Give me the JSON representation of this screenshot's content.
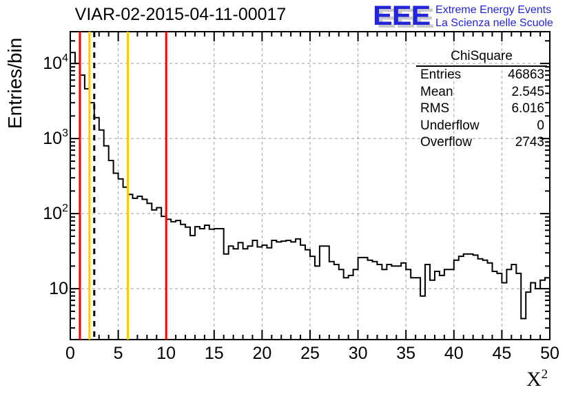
{
  "title": "VIAR-02-2015-04-11-00017",
  "y_axis_label": "Entries/bin",
  "x_axis_label": {
    "base": "X",
    "exp": "2"
  },
  "logo": {
    "eee": "EEE",
    "line1": "Extreme Energy Events",
    "line2": "La Scienza nelle Scuole",
    "color": "#2424d8"
  },
  "stats": {
    "header": "ChiSquare",
    "rows": [
      {
        "label": "Entries",
        "value": "46863"
      },
      {
        "label": "Mean",
        "value": "2.545"
      },
      {
        "label": "RMS",
        "value": "6.016"
      },
      {
        "label": "Underflow",
        "value": "0"
      },
      {
        "label": "Overflow",
        "value": "2743"
      }
    ]
  },
  "chart_data": {
    "type": "bar",
    "subtype": "step-histogram-logy",
    "title": "VIAR-02-2015-04-11-00017",
    "xlabel": "X^2",
    "ylabel": "Entries/bin",
    "grid": true,
    "x_axis": {
      "min": 0,
      "max": 50,
      "major_step": 5,
      "minor_step": 1,
      "tick_labels": [
        "0",
        "5",
        "10",
        "15",
        "20",
        "25",
        "30",
        "35",
        "40",
        "45",
        "50"
      ]
    },
    "y_axis": {
      "scale": "log",
      "min": 2.1,
      "max": 26500,
      "decades": [
        10,
        100,
        1000,
        10000
      ],
      "tick_labels": [
        {
          "value": 10,
          "base": "10",
          "exp": ""
        },
        {
          "value": 100,
          "base": "10",
          "exp": "2"
        },
        {
          "value": 1000,
          "base": "10",
          "exp": "3"
        },
        {
          "value": 10000,
          "base": "10",
          "exp": "4"
        }
      ]
    },
    "bin_start": 0,
    "bin_width": 0.5,
    "bins": [
      14000,
      10000,
      7000,
      4600,
      3000,
      1900,
      1300,
      800,
      510,
      345,
      290,
      225,
      180,
      160,
      170,
      155,
      137,
      112,
      120,
      92,
      84,
      78,
      81,
      72,
      66,
      51,
      67,
      63,
      70,
      62,
      63,
      63,
      29,
      37,
      34,
      41,
      34,
      37,
      44,
      36,
      38,
      35,
      44,
      42,
      43,
      44,
      42,
      46,
      38,
      33,
      27,
      20,
      37,
      37,
      23,
      21,
      18,
      14,
      15,
      18,
      26,
      26,
      24,
      23,
      21,
      18,
      21,
      20,
      20,
      22,
      18,
      14,
      14,
      8,
      21,
      13,
      17,
      15,
      18,
      18,
      24,
      27,
      29,
      29,
      28,
      25,
      24,
      22,
      17,
      16,
      12,
      18,
      21,
      16,
      4,
      9,
      12,
      10,
      13,
      14
    ],
    "marker_lines": [
      {
        "x": 1,
        "color": "#ff0000",
        "dash": false
      },
      {
        "x": 2,
        "color": "#ffcc00",
        "dash": false
      },
      {
        "x": 2.5,
        "color": "#000000",
        "dash": true
      },
      {
        "x": 6,
        "color": "#ffcc00",
        "dash": false
      },
      {
        "x": 10,
        "color": "#ff0000",
        "dash": false
      }
    ],
    "colors": {
      "histogram": "#000000",
      "grid": "#999999",
      "frame": "#000000"
    }
  }
}
